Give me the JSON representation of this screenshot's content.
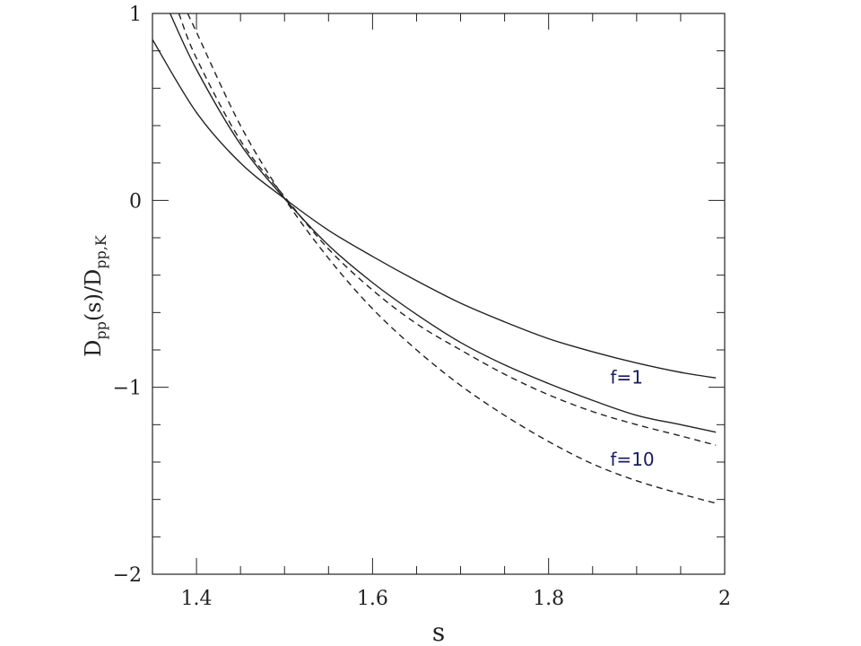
{
  "chart_data": {
    "type": "line",
    "xlabel": "s",
    "ylabel": {
      "main": "D",
      "sub1": "pp",
      "mid": "(s)/D",
      "sub2": "pp,K"
    },
    "xlim": [
      1.35,
      2.0
    ],
    "ylim": [
      -2,
      1
    ],
    "x_ticks": [
      1.4,
      1.6,
      1.8,
      2.0
    ],
    "x_tick_labels": [
      "1.4",
      "1.6",
      "1.8",
      "2"
    ],
    "y_ticks": [
      -2,
      -1,
      0,
      1
    ],
    "y_tick_labels": [
      "−2",
      "−1",
      "0",
      "1"
    ],
    "grid": false,
    "legend": "none",
    "annotations": [
      {
        "text": "f=1",
        "x": 1.87,
        "y": -0.98
      },
      {
        "text": "f=10",
        "x": 1.87,
        "y": -1.42
      }
    ],
    "series": [
      {
        "style": "solid",
        "x": [
          1.35,
          1.4,
          1.45,
          1.5,
          1.55,
          1.6,
          1.65,
          1.7,
          1.75,
          1.8,
          1.85,
          1.9,
          1.95,
          1.99
        ],
        "y": [
          0.86,
          0.47,
          0.2,
          0.01,
          -0.16,
          -0.3,
          -0.43,
          -0.55,
          -0.65,
          -0.74,
          -0.81,
          -0.87,
          -0.92,
          -0.95
        ]
      },
      {
        "style": "solid",
        "x": [
          1.37,
          1.4,
          1.45,
          1.5,
          1.55,
          1.6,
          1.65,
          1.7,
          1.75,
          1.8,
          1.85,
          1.9,
          1.95,
          1.99
        ],
        "y": [
          1.0,
          0.7,
          0.3,
          0.01,
          -0.24,
          -0.44,
          -0.61,
          -0.76,
          -0.88,
          -0.98,
          -1.07,
          -1.15,
          -1.2,
          -1.24
        ]
      },
      {
        "style": "dashed",
        "x": [
          1.38,
          1.4,
          1.45,
          1.5,
          1.55,
          1.6,
          1.65,
          1.7,
          1.75,
          1.8,
          1.85,
          1.9,
          1.95,
          1.99
        ],
        "y": [
          1.0,
          0.76,
          0.32,
          0.02,
          -0.26,
          -0.48,
          -0.66,
          -0.8,
          -0.93,
          -1.04,
          -1.13,
          -1.2,
          -1.26,
          -1.31
        ]
      },
      {
        "style": "dashed",
        "x": [
          1.39,
          1.4,
          1.45,
          1.5,
          1.55,
          1.6,
          1.65,
          1.7,
          1.75,
          1.8,
          1.85,
          1.9,
          1.95,
          1.99
        ],
        "y": [
          1.0,
          0.9,
          0.4,
          0.01,
          -0.31,
          -0.58,
          -0.8,
          -0.99,
          -1.15,
          -1.29,
          -1.41,
          -1.5,
          -1.57,
          -1.62
        ]
      }
    ]
  }
}
